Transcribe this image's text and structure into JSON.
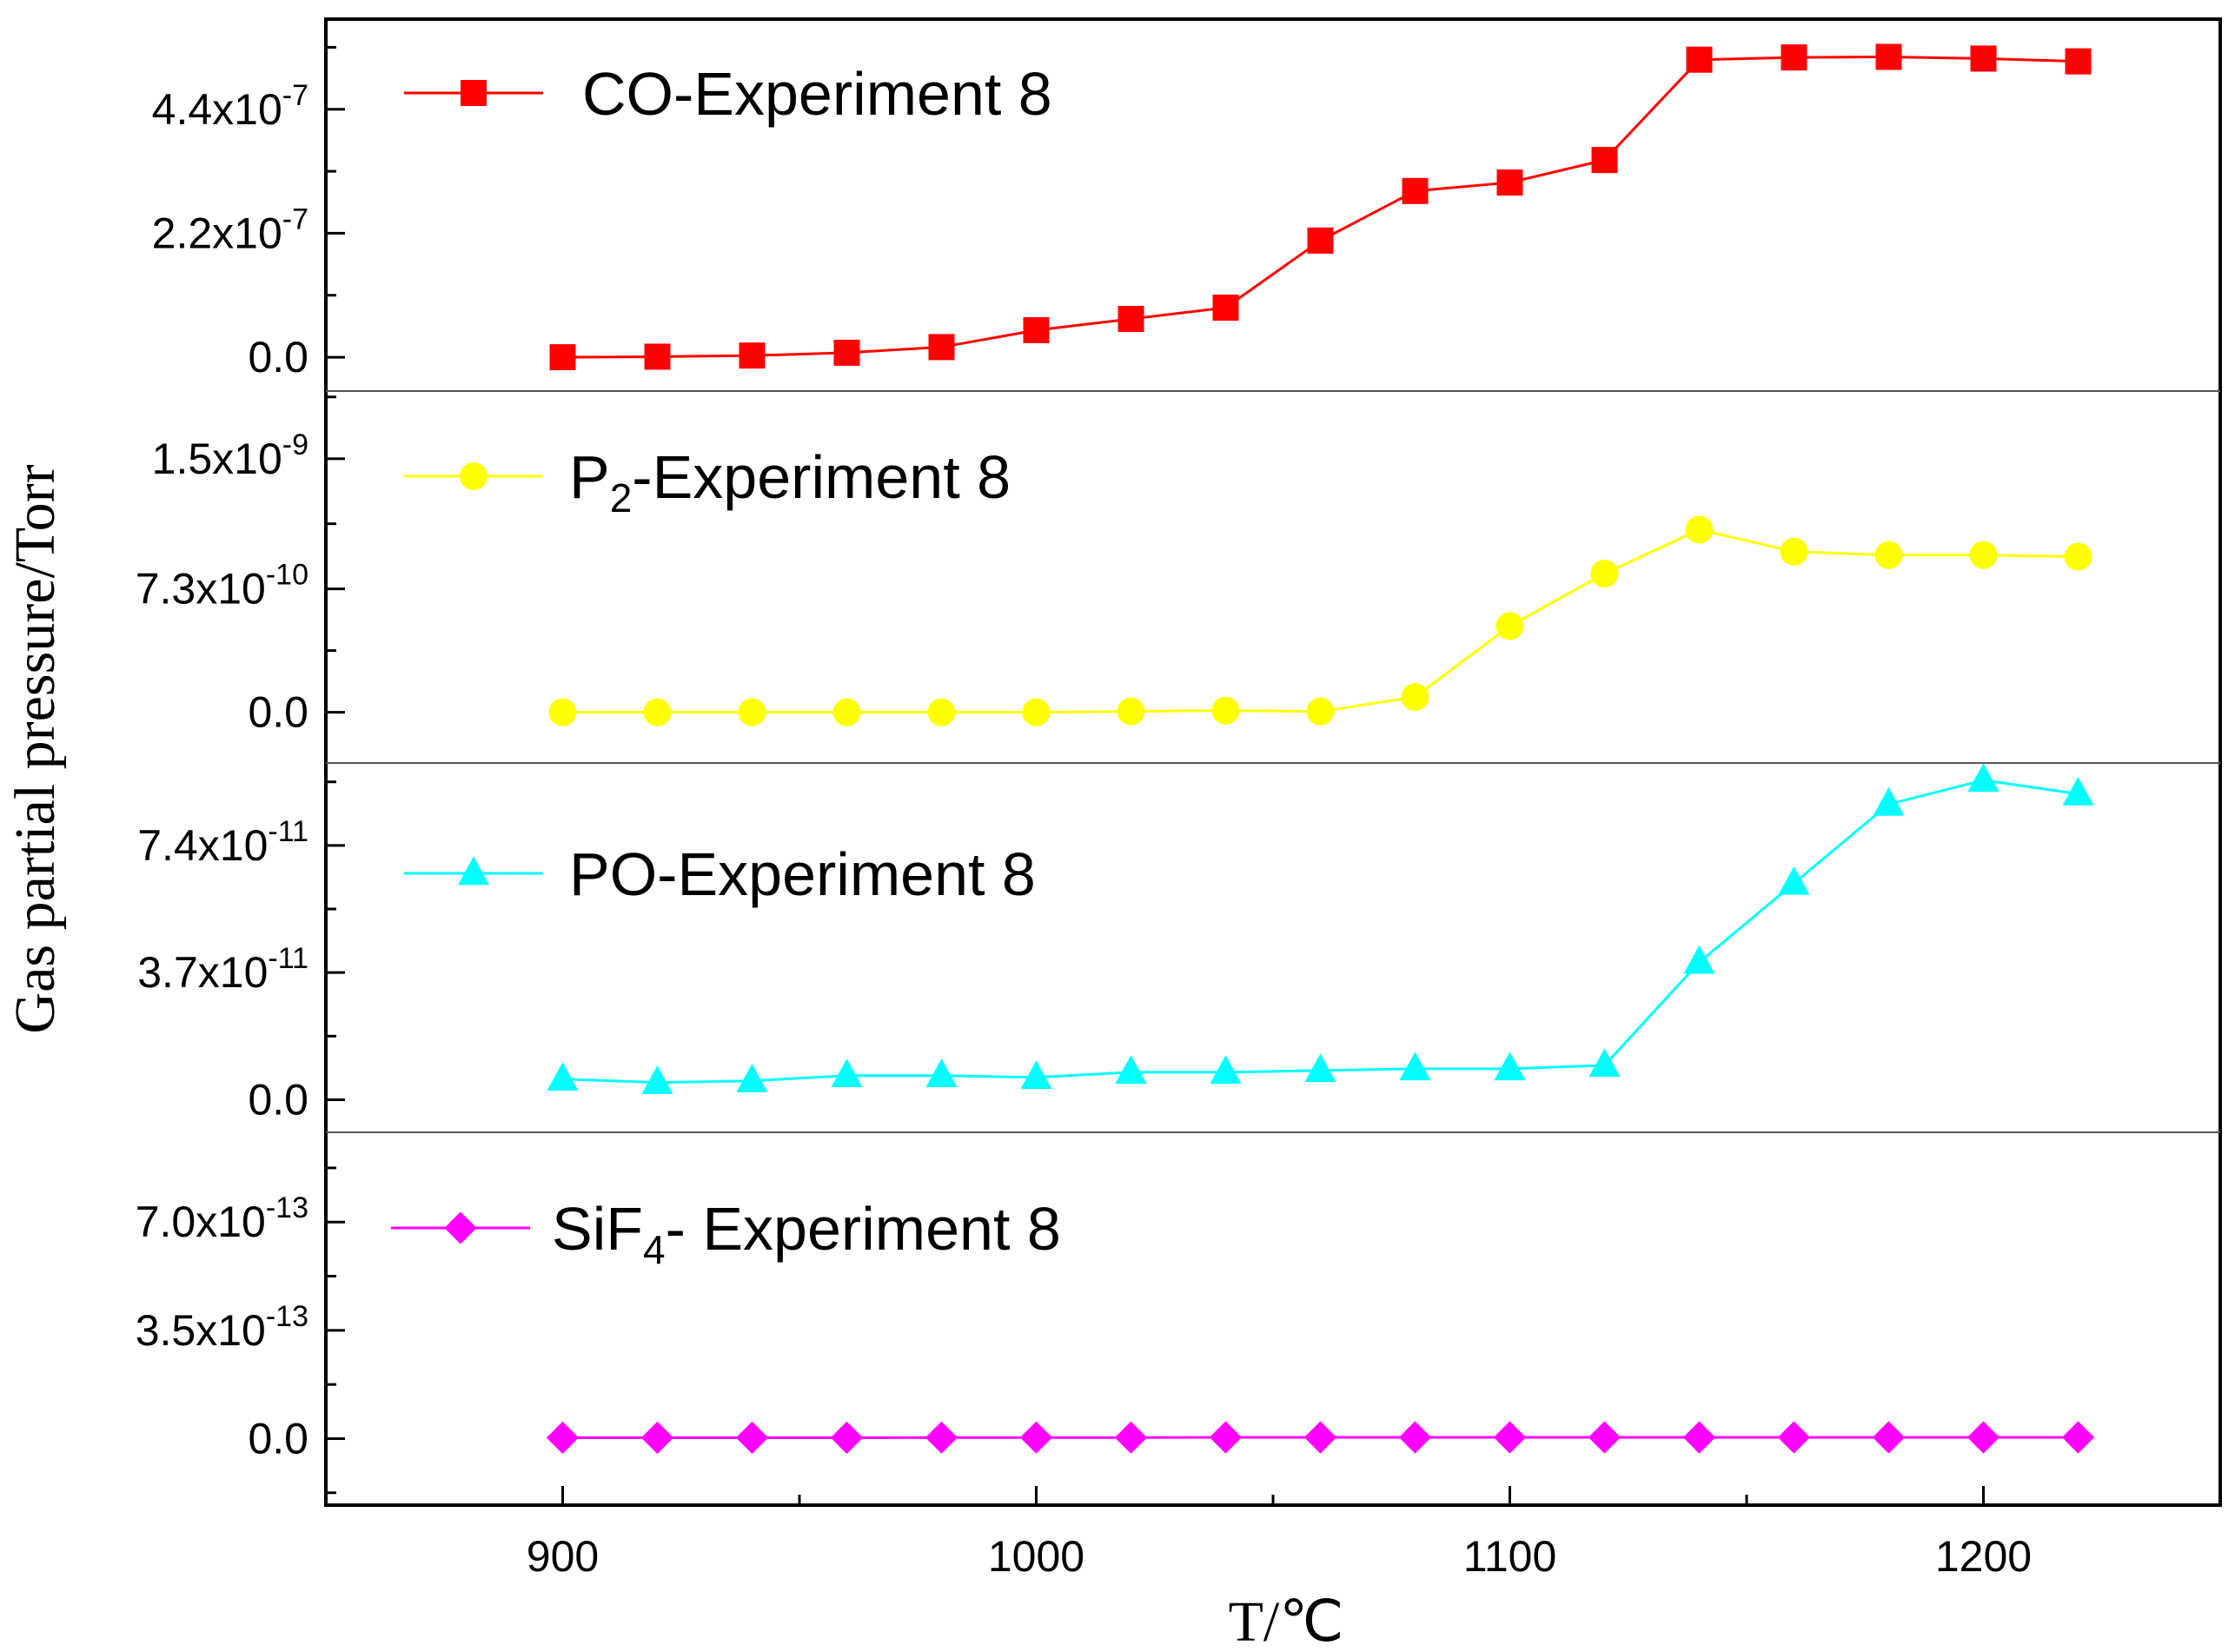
{
  "chart_data": [
    {
      "type": "line",
      "panel": "top",
      "series": [
        {
          "name": "CO-Experiment 8",
          "legend_main": "CO-Experiment 8",
          "legend_sub": "",
          "legend_tail": "",
          "marker": "square",
          "color": "#ff0000",
          "x": [
            900,
            920,
            940,
            960,
            980,
            1000,
            1020,
            1040,
            1060,
            1080,
            1100,
            1120,
            1140,
            1160,
            1180,
            1200,
            1220
          ],
          "y": [
            0.0,
            1e-09,
            3e-09,
            8e-09,
            1.8e-08,
            4.8e-08,
            6.8e-08,
            8.8e-08,
            2.07e-07,
            2.95e-07,
            3.1e-07,
            3.5e-07,
            5.28e-07,
            5.32e-07,
            5.33e-07,
            5.3e-07,
            5.25e-07
          ]
        }
      ],
      "yticks": [
        {
          "value": 0.0,
          "mantissa": "0.0",
          "exponent": ""
        },
        {
          "value": 2.2e-07,
          "mantissa": "2.2x10",
          "exponent": "-7"
        },
        {
          "value": 4.4e-07,
          "mantissa": "4.4x10",
          "exponent": "-7"
        }
      ],
      "ylim": [
        -6e-08,
        6e-07
      ]
    },
    {
      "type": "line",
      "panel": "second",
      "series": [
        {
          "name": "P2-Experiment 8",
          "legend_main": "P",
          "legend_sub": "2",
          "legend_tail": "-Experiment 8",
          "marker": "circle",
          "color": "#ffff00",
          "x": [
            900,
            920,
            940,
            960,
            980,
            1000,
            1020,
            1040,
            1060,
            1080,
            1100,
            1120,
            1140,
            1160,
            1180,
            1200,
            1220
          ],
          "y": [
            0.0,
            0.0,
            0.0,
            0.0,
            0.0,
            0.0,
            5e-12,
            1e-11,
            5e-12,
            9e-11,
            5.1e-10,
            8.2e-10,
            1.08e-09,
            9.5e-10,
            9.3e-10,
            9.3e-10,
            9.2e-10
          ]
        }
      ],
      "yticks": [
        {
          "value": 0.0,
          "mantissa": "0.0",
          "exponent": ""
        },
        {
          "value": 7.3e-10,
          "mantissa": "7.3x10",
          "exponent": "-10"
        },
        {
          "value": 1.5e-09,
          "mantissa": "1.5x10",
          "exponent": "-9"
        }
      ],
      "ylim": [
        -3e-10,
        1.9e-09
      ]
    },
    {
      "type": "line",
      "panel": "third",
      "series": [
        {
          "name": "PO-Experiment 8",
          "legend_main": "PO-Experiment 8",
          "legend_sub": "",
          "legend_tail": "",
          "marker": "triangle",
          "color": "#00ffff",
          "x": [
            900,
            920,
            940,
            960,
            980,
            1000,
            1020,
            1040,
            1060,
            1080,
            1100,
            1120,
            1140,
            1160,
            1180,
            1200,
            1220
          ],
          "y": [
            6e-12,
            5e-12,
            5.5e-12,
            7e-12,
            7e-12,
            6.5e-12,
            8e-12,
            8e-12,
            8.5e-12,
            9e-12,
            9e-12,
            1e-11,
            4e-11,
            6.3e-11,
            8.6e-11,
            9.3e-11,
            8.9e-11
          ]
        }
      ],
      "yticks": [
        {
          "value": 0.0,
          "mantissa": "0.0",
          "exponent": ""
        },
        {
          "value": 3.7e-11,
          "mantissa": "3.7x10",
          "exponent": "-11"
        },
        {
          "value": 7.4e-11,
          "mantissa": "7.4x10",
          "exponent": "-11"
        }
      ],
      "ylim": [
        -9.5e-12,
        9.8e-11
      ]
    },
    {
      "type": "line",
      "panel": "bottom",
      "series": [
        {
          "name": "SiF4- Experiment 8",
          "legend_main": "SiF",
          "legend_sub": "4",
          "legend_tail": "- Experiment 8",
          "marker": "diamond",
          "color": "#ff00ff",
          "x": [
            900,
            920,
            940,
            960,
            980,
            1000,
            1020,
            1040,
            1060,
            1080,
            1100,
            1120,
            1140,
            1160,
            1180,
            1200,
            1220
          ],
          "y": [
            3e-15,
            3e-15,
            3e-15,
            3e-15,
            3.5e-15,
            3.5e-15,
            3.5e-15,
            4e-15,
            4e-15,
            4e-15,
            4e-15,
            4e-15,
            4e-15,
            4e-15,
            4e-15,
            4e-15,
            4e-15
          ]
        }
      ],
      "yticks": [
        {
          "value": 0.0,
          "mantissa": "0.0",
          "exponent": ""
        },
        {
          "value": 3.5e-13,
          "mantissa": "3.5x10",
          "exponent": "-13"
        },
        {
          "value": 7e-13,
          "mantissa": "7.0x10",
          "exponent": "-13"
        }
      ],
      "ylim": [
        -2.15e-13,
        9.9e-13
      ]
    }
  ],
  "axes": {
    "xlabel": "T/℃",
    "ylabel": "Gas partial pressure/Torr",
    "xticks": [
      900,
      1000,
      1100,
      1200
    ],
    "xminor": [
      950,
      1050,
      1150
    ],
    "xlim": [
      850,
      1250
    ]
  }
}
